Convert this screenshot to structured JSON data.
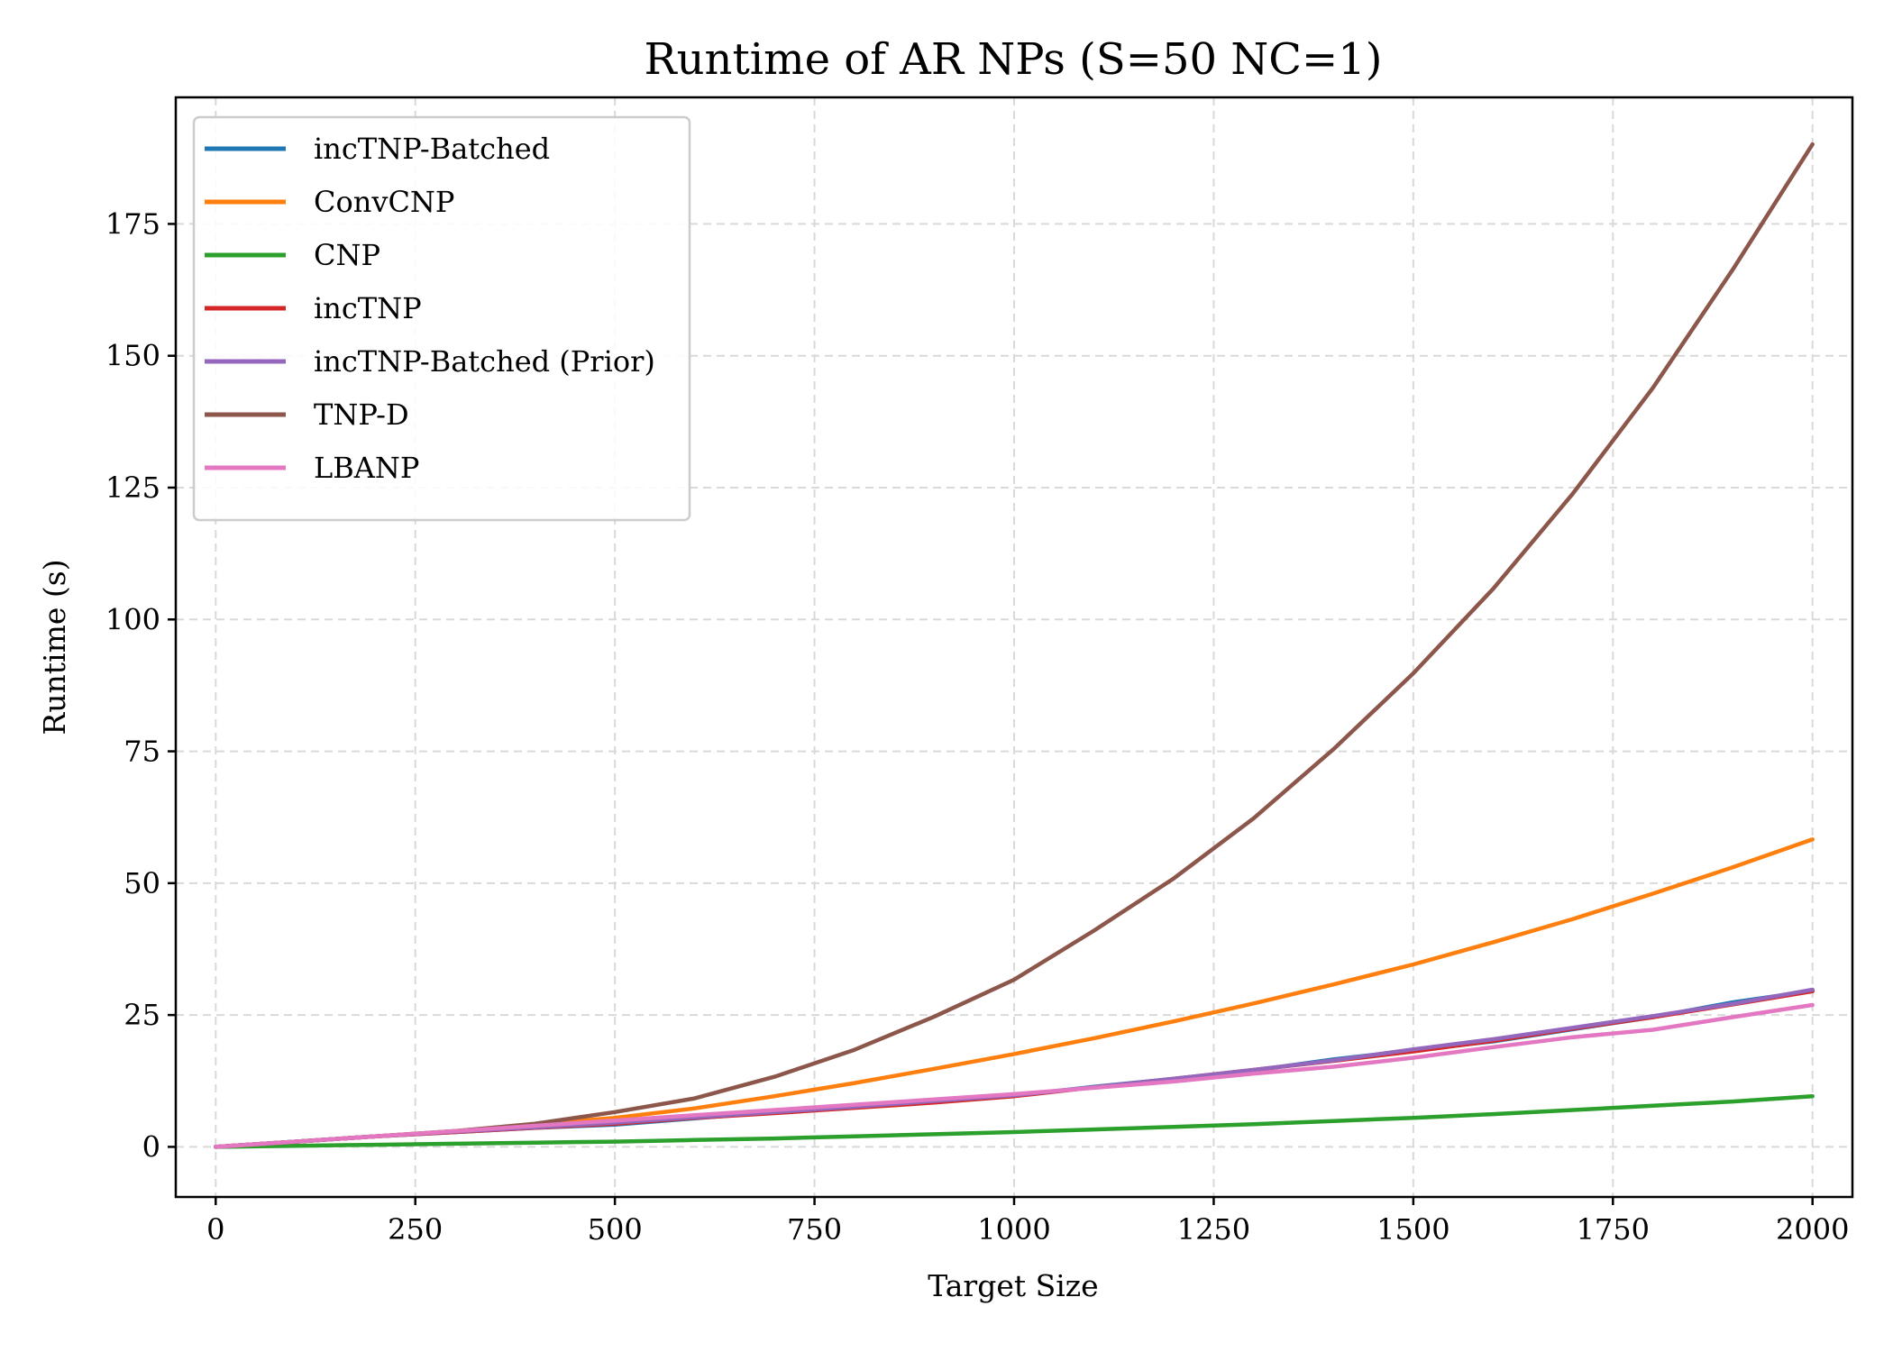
{
  "chart_data": {
    "type": "line",
    "title": "Runtime of AR NPs (S=50 NC=1)",
    "xlabel": "Target Size",
    "ylabel": "Runtime (s)",
    "xlim": [
      -50,
      2050
    ],
    "ylim": [
      -9.5,
      199
    ],
    "xticks": [
      0,
      250,
      500,
      750,
      1000,
      1250,
      1500,
      1750,
      2000
    ],
    "yticks": [
      0,
      25,
      50,
      75,
      100,
      125,
      150,
      175
    ],
    "grid": true,
    "legend_position": "upper-left",
    "x": [
      0,
      100,
      200,
      300,
      400,
      500,
      600,
      700,
      800,
      900,
      1000,
      1100,
      1200,
      1300,
      1400,
      1500,
      1600,
      1700,
      1800,
      1900,
      2000
    ],
    "series": [
      {
        "name": "incTNP-Batched",
        "color": "#1f77b4",
        "values": [
          0,
          1.0,
          2.0,
          2.8,
          3.6,
          4.2,
          5.4,
          6.6,
          7.6,
          8.6,
          9.7,
          11.4,
          12.9,
          14.5,
          16.6,
          18.3,
          20.0,
          22.3,
          24.6,
          27.4,
          29.6
        ]
      },
      {
        "name": "ConvCNP",
        "color": "#ff7f0e",
        "values": [
          0,
          1.0,
          2.0,
          3.0,
          4.3,
          5.5,
          7.3,
          9.6,
          12.1,
          14.8,
          17.6,
          20.6,
          23.8,
          27.2,
          30.8,
          34.6,
          38.8,
          43.2,
          48.0,
          53.0,
          58.3
        ]
      },
      {
        "name": "CNP",
        "color": "#2ca02c",
        "values": [
          0,
          0.2,
          0.4,
          0.6,
          0.8,
          1.0,
          1.3,
          1.6,
          2.0,
          2.4,
          2.8,
          3.3,
          3.8,
          4.3,
          4.9,
          5.5,
          6.2,
          7.0,
          7.8,
          8.6,
          9.6
        ]
      },
      {
        "name": "incTNP",
        "color": "#d62728",
        "values": [
          0,
          1.0,
          2.0,
          2.8,
          3.6,
          4.4,
          5.5,
          6.4,
          7.4,
          8.4,
          9.6,
          11.3,
          12.9,
          14.6,
          16.3,
          18.1,
          20.1,
          22.4,
          24.6,
          27.0,
          29.5
        ]
      },
      {
        "name": "incTNP-Batched (Prior)",
        "color": "#9467bd",
        "values": [
          0,
          1.0,
          2.0,
          2.9,
          3.7,
          4.6,
          5.6,
          6.6,
          7.6,
          8.7,
          9.8,
          11.3,
          12.9,
          14.6,
          16.4,
          18.5,
          20.4,
          22.6,
          24.8,
          27.1,
          29.8
        ]
      },
      {
        "name": "TNP-D",
        "color": "#8c564b",
        "values": [
          0,
          1.0,
          2.0,
          3.0,
          4.4,
          6.6,
          9.2,
          13.3,
          18.4,
          24.7,
          31.7,
          41.0,
          50.9,
          62.3,
          75.4,
          89.8,
          105.8,
          123.9,
          143.9,
          166.3,
          190.1
        ]
      },
      {
        "name": "LBANP",
        "color": "#e377c2",
        "values": [
          0,
          1.0,
          2.0,
          3.0,
          4.0,
          5.0,
          6.0,
          7.0,
          8.0,
          9.0,
          10.0,
          11.2,
          12.4,
          13.9,
          15.2,
          16.9,
          18.9,
          20.8,
          22.2,
          24.6,
          26.9
        ]
      }
    ]
  }
}
